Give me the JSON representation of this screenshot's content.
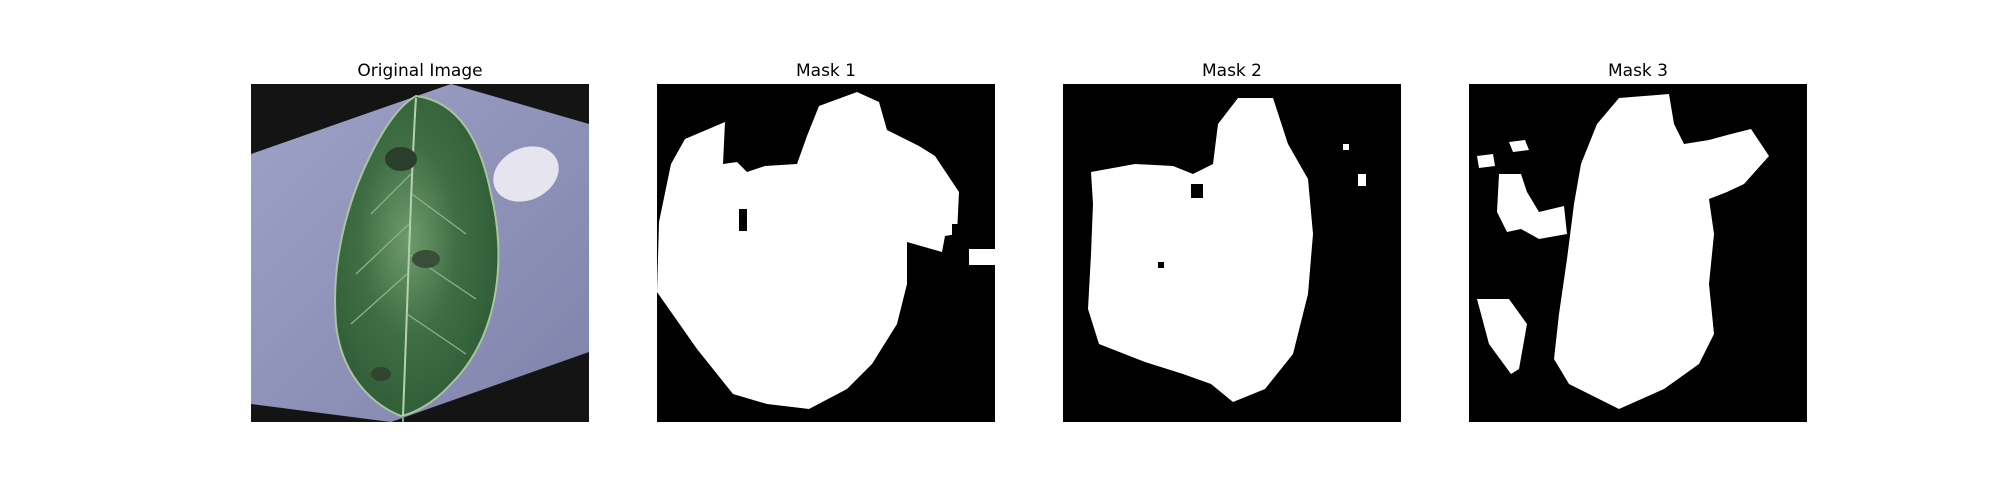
{
  "panels": [
    {
      "title": "Original Image"
    },
    {
      "title": "Mask 1"
    },
    {
      "title": "Mask 2"
    },
    {
      "title": "Mask 3"
    }
  ],
  "colors": {
    "background": "#ffffff",
    "mask_background": "#000000",
    "mask_foreground": "#ffffff",
    "photo_backdrop": "#8f93b8",
    "leaf_dark": "#2e5b34",
    "leaf_light": "#6f9a6e"
  }
}
